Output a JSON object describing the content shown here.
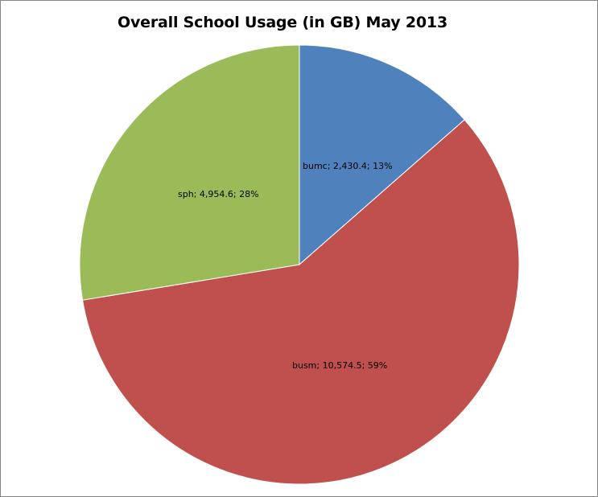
{
  "chart_data": {
    "type": "pie",
    "title": "Overall School Usage (in GB)  May 2013",
    "slices": [
      {
        "name": "bumc",
        "value": 2430.4,
        "percent": 13,
        "label": "bumc; 2,430.4; 13%",
        "color": "#4F81BD"
      },
      {
        "name": "busm",
        "value": 10574.5,
        "percent": 59,
        "label": "busm; 10,574.5; 59%",
        "color": "#C0504D"
      },
      {
        "name": "sph",
        "value": 4954.6,
        "percent": 28,
        "label": "sph; 4,954.6; 28%",
        "color": "#9BBB59"
      }
    ],
    "start_angle": "12 o'clock",
    "direction": "clockwise",
    "legend": "none"
  }
}
